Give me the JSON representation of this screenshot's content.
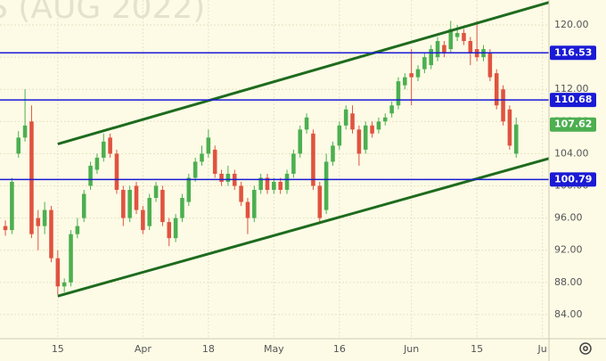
{
  "chart_data": {
    "type": "candlestick",
    "title": "S (AUG 2022)",
    "open": [
      95,
      94.5,
      104,
      106,
      108,
      96,
      95,
      97,
      91,
      87.5,
      88,
      94,
      96,
      100,
      102,
      103.5,
      106,
      104,
      99.5,
      96,
      100,
      97,
      95,
      98.5,
      99.5,
      95.5,
      93.5,
      96,
      98,
      101,
      103,
      104,
      104.5,
      101.5,
      100.5,
      101.5,
      100,
      98,
      96,
      99.5,
      101,
      99.5,
      100.5,
      99.5,
      101.5,
      104,
      107,
      106.5,
      100,
      97,
      103,
      105,
      107.5,
      109,
      107,
      104.5,
      107.5,
      107,
      108,
      109,
      110,
      112.5,
      114,
      113.5,
      114.5,
      115,
      116,
      117.5,
      117,
      118.5,
      119,
      118,
      117,
      116,
      116.5,
      114,
      112,
      109.5,
      104
    ],
    "high": [
      95.7,
      101,
      106.8,
      112,
      110,
      97,
      98,
      97.5,
      92,
      88.5,
      94.5,
      96,
      99.5,
      103,
      104,
      106.5,
      106.5,
      104.5,
      100,
      100,
      100.5,
      97.5,
      99,
      100.5,
      100,
      96,
      96.5,
      99,
      101.5,
      103.5,
      105,
      107,
      105,
      102,
      102.5,
      102,
      100.5,
      98.5,
      100,
      101.5,
      101.5,
      101,
      101,
      102,
      104.5,
      107.5,
      109,
      107,
      100.5,
      104,
      105.5,
      108,
      110,
      110,
      107.5,
      108,
      108,
      108.5,
      109,
      110.5,
      113.5,
      114,
      117,
      115,
      116.5,
      117.5,
      118.5,
      118,
      120.5,
      120,
      119.5,
      118.5,
      120.5,
      117.5,
      117,
      114.5,
      112.5,
      110,
      108.5
    ],
    "low": [
      93.8,
      94,
      103.5,
      105.5,
      93.5,
      92,
      94,
      90.5,
      86.5,
      86.8,
      87.5,
      93.5,
      95.5,
      99.5,
      101.5,
      103,
      103.5,
      99,
      95,
      95.5,
      96.5,
      94,
      94.5,
      98,
      95,
      92.5,
      93,
      95.5,
      97.5,
      100.5,
      102.5,
      103.5,
      101,
      100,
      100,
      99.5,
      97.5,
      94,
      95.5,
      99,
      99,
      99,
      99,
      99,
      101,
      103.5,
      106.5,
      99.5,
      95.5,
      96.5,
      102.5,
      104.5,
      107,
      106.5,
      102.5,
      104,
      106,
      106.5,
      107.5,
      108.5,
      109.5,
      112,
      110,
      113,
      114,
      114.5,
      115.5,
      116,
      116.5,
      118,
      117.5,
      115,
      115.5,
      115.5,
      113,
      109.5,
      107.5,
      104.5,
      103.5
    ],
    "close": [
      94.5,
      100.5,
      106,
      107.5,
      94,
      95,
      97,
      91,
      87.5,
      88,
      94,
      95,
      99,
      102.5,
      103.5,
      105.5,
      104,
      99.5,
      96,
      99.5,
      97,
      94.5,
      98.5,
      100,
      95.5,
      93.5,
      96,
      98.5,
      101,
      103,
      104,
      106,
      101.5,
      100.5,
      101.5,
      100,
      98,
      96,
      99.5,
      101,
      99.5,
      100.5,
      99.5,
      101.5,
      104,
      107,
      108.5,
      100,
      96,
      103,
      105,
      107.5,
      109.5,
      107,
      104,
      107.5,
      106.5,
      108,
      108.5,
      110,
      113,
      113.5,
      113.5,
      114.5,
      116,
      117,
      118,
      116.5,
      119.5,
      119,
      118,
      116.5,
      116,
      117,
      113.5,
      110,
      108,
      105,
      107.62
    ],
    "up_color": "#4caf50",
    "down_color": "#e0533f",
    "xlim": [
      -0.82,
      83
    ],
    "xticks": [
      {
        "value": 8,
        "label": "15"
      },
      {
        "value": 21,
        "label": "Apr"
      },
      {
        "value": 31,
        "label": "18"
      },
      {
        "value": 41,
        "label": "May"
      },
      {
        "value": 51,
        "label": "16"
      },
      {
        "value": 62,
        "label": "Jun"
      },
      {
        "value": 72,
        "label": "15"
      },
      {
        "value": 82,
        "label": "Ju"
      }
    ],
    "ylim": [
      81,
      123.1
    ],
    "yticks": [
      {
        "value": 84,
        "label": "84.00"
      },
      {
        "value": 88,
        "label": "88.00"
      },
      {
        "value": 92,
        "label": "92.00"
      },
      {
        "value": 96,
        "label": "96.00"
      },
      {
        "value": 100,
        "label": "100.00"
      },
      {
        "value": 104,
        "label": "104.00"
      },
      {
        "value": 108,
        "label": "108.00"
      },
      {
        "value": 112,
        "label": "112.00"
      },
      {
        "value": 116,
        "label": "116.00"
      },
      {
        "value": 120,
        "label": "120.00"
      }
    ],
    "grid": true,
    "hlines": [
      116.53,
      110.68,
      100.79
    ],
    "hline_color": "#1a1ad6",
    "trend_lines": [
      {
        "x": [
          8,
          83
        ],
        "y": [
          105.2,
          122.8
        ]
      },
      {
        "x": [
          8,
          83
        ],
        "y": [
          86.3,
          103.4
        ]
      }
    ],
    "trend_color": "#1e6b1e"
  }
}
